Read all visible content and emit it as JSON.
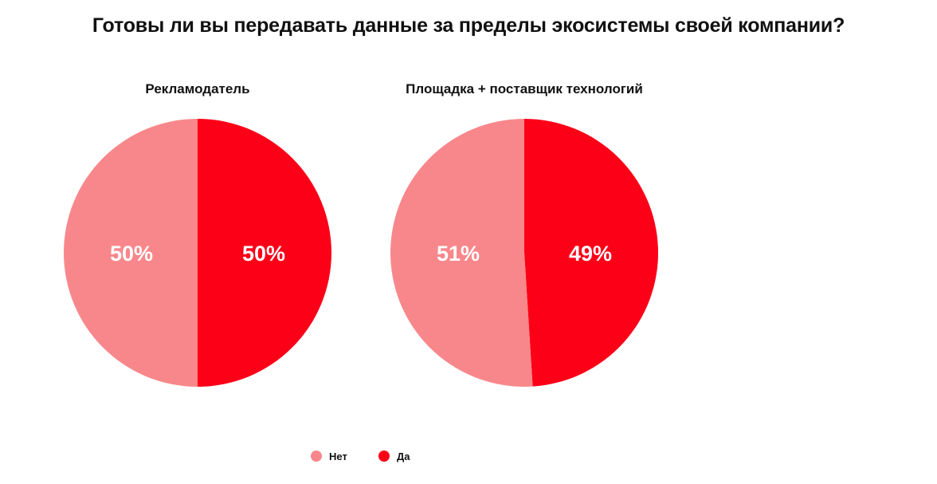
{
  "title": "Готовы ли вы передавать данные за пределы экосистемы своей компании?",
  "colors": {
    "no": "#f8878b",
    "yes": "#fc0018"
  },
  "legend": {
    "placement": "bottom-center",
    "items": [
      {
        "label": "Нет",
        "color": "#f8878b"
      },
      {
        "label": "Да",
        "color": "#fc0018"
      }
    ]
  },
  "chart_data": [
    {
      "type": "pie",
      "title": "Рекламодатель",
      "slices": [
        {
          "label": "Нет",
          "value": 50,
          "display": "50%",
          "color": "#f8878b"
        },
        {
          "label": "Да",
          "value": 50,
          "display": "50%",
          "color": "#fc0018"
        }
      ]
    },
    {
      "type": "pie",
      "title": "Площадка + поставщик технологий",
      "slices": [
        {
          "label": "Нет",
          "value": 51,
          "display": "51%",
          "color": "#f8878b"
        },
        {
          "label": "Да",
          "value": 49,
          "display": "49%",
          "color": "#fc0018"
        }
      ]
    }
  ]
}
